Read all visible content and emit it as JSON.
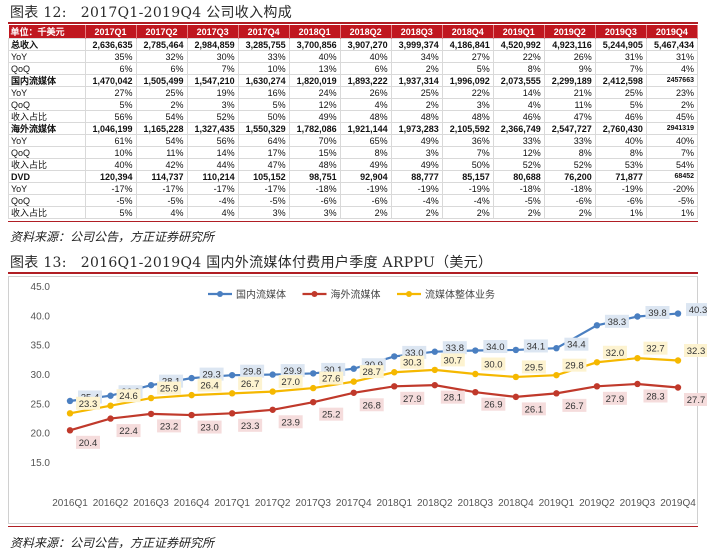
{
  "figure12": {
    "num": "图表 12:",
    "title": "2017Q1-2019Q4 公司收入构成",
    "source": "资料来源：公司公告，方正证券研究所"
  },
  "figure13": {
    "num": "图表 13:",
    "title": "2016Q1-2019Q4 国内外流媒体付费用户季度 ARPPU（美元）",
    "source": "资料来源：公司公告，方正证券研究所"
  },
  "table": {
    "headers": [
      "单位：千美元",
      "2017Q1",
      "2017Q2",
      "2017Q3",
      "2017Q4",
      "2018Q1",
      "2018Q2",
      "2018Q3",
      "2018Q4",
      "2019Q1",
      "2019Q2",
      "2019Q3",
      "2019Q4"
    ],
    "rows": [
      {
        "type": "main",
        "cells": [
          "总收入",
          "2,636,635",
          "2,785,464",
          "2,984,859",
          "3,285,755",
          "3,700,856",
          "3,907,270",
          "3,999,374",
          "4,186,841",
          "4,520,992",
          "4,923,116",
          "5,244,905",
          "5,467,434"
        ]
      },
      {
        "type": "sub",
        "cells": [
          "YoY",
          "35%",
          "32%",
          "30%",
          "33%",
          "40%",
          "40%",
          "34%",
          "27%",
          "22%",
          "26%",
          "31%",
          "31%"
        ]
      },
      {
        "type": "sub",
        "cells": [
          "QoQ",
          "6%",
          "6%",
          "7%",
          "10%",
          "13%",
          "6%",
          "2%",
          "5%",
          "8%",
          "9%",
          "7%",
          "4%"
        ]
      },
      {
        "type": "main",
        "sep": true,
        "cells": [
          "国内流媒体",
          "1,470,042",
          "1,505,499",
          "1,547,210",
          "1,630,274",
          "1,820,019",
          "1,893,222",
          "1,937,314",
          "1,996,092",
          "2,073,555",
          "2,299,189",
          "2,412,598",
          "2457663"
        ]
      },
      {
        "type": "sub",
        "cells": [
          "YoY",
          "27%",
          "25%",
          "19%",
          "16%",
          "24%",
          "26%",
          "25%",
          "22%",
          "14%",
          "21%",
          "25%",
          "23%"
        ]
      },
      {
        "type": "sub",
        "cells": [
          "QoQ",
          "5%",
          "2%",
          "3%",
          "5%",
          "12%",
          "4%",
          "2%",
          "3%",
          "4%",
          "11%",
          "5%",
          "2%"
        ]
      },
      {
        "type": "sub",
        "cells": [
          "收入占比",
          "56%",
          "54%",
          "52%",
          "50%",
          "49%",
          "48%",
          "48%",
          "48%",
          "46%",
          "47%",
          "46%",
          "45%"
        ]
      },
      {
        "type": "main",
        "sep": true,
        "cells": [
          "海外流媒体",
          "1,046,199",
          "1,165,228",
          "1,327,435",
          "1,550,329",
          "1,782,086",
          "1,921,144",
          "1,973,283",
          "2,105,592",
          "2,366,749",
          "2,547,727",
          "2,760,430",
          "2941319"
        ]
      },
      {
        "type": "sub",
        "cells": [
          "YoY",
          "61%",
          "54%",
          "56%",
          "64%",
          "70%",
          "65%",
          "49%",
          "36%",
          "33%",
          "33%",
          "40%",
          "40%"
        ]
      },
      {
        "type": "sub",
        "cells": [
          "QoQ",
          "10%",
          "11%",
          "14%",
          "17%",
          "15%",
          "8%",
          "3%",
          "7%",
          "12%",
          "8%",
          "8%",
          "7%"
        ]
      },
      {
        "type": "sub",
        "cells": [
          "收入占比",
          "40%",
          "42%",
          "44%",
          "47%",
          "48%",
          "49%",
          "49%",
          "50%",
          "52%",
          "52%",
          "53%",
          "54%"
        ]
      },
      {
        "type": "main",
        "sep": true,
        "cells": [
          "DVD",
          "120,394",
          "114,737",
          "110,214",
          "105,152",
          "98,751",
          "92,904",
          "88,777",
          "85,157",
          "80,688",
          "76,200",
          "71,877",
          "68452"
        ]
      },
      {
        "type": "sub",
        "cells": [
          "YoY",
          "-17%",
          "-17%",
          "-17%",
          "-17%",
          "-18%",
          "-19%",
          "-19%",
          "-19%",
          "-18%",
          "-18%",
          "-19%",
          "-20%"
        ]
      },
      {
        "type": "sub",
        "cells": [
          "QoQ",
          "-5%",
          "-5%",
          "-4%",
          "-5%",
          "-6%",
          "-6%",
          "-4%",
          "-4%",
          "-5%",
          "-6%",
          "-6%",
          "-5%"
        ]
      },
      {
        "type": "sub",
        "cells": [
          "收入占比",
          "5%",
          "4%",
          "4%",
          "3%",
          "3%",
          "2%",
          "2%",
          "2%",
          "2%",
          "2%",
          "1%",
          "1%"
        ]
      }
    ]
  },
  "chart_data": {
    "type": "line",
    "title": "",
    "xlabel": "",
    "ylabel": "",
    "ylim": [
      15.0,
      45.0
    ],
    "yticks": [
      "15.0",
      "20.0",
      "25.0",
      "30.0",
      "35.0",
      "40.0",
      "45.0"
    ],
    "grid": false,
    "legend_position": "top-center",
    "categories": [
      "2016Q1",
      "2016Q2",
      "2016Q3",
      "2016Q4",
      "2017Q1",
      "2017Q2",
      "2017Q3",
      "2017Q4",
      "2018Q1",
      "2018Q2",
      "2018Q3",
      "2018Q4",
      "2019Q1",
      "2019Q2",
      "2019Q3",
      "2019Q4"
    ],
    "series": [
      {
        "name": "国内流媒体",
        "color": "#4a7fc1",
        "label_bg": "#dce6f2",
        "label_pos": "right",
        "values": [
          25.4,
          26.3,
          28.1,
          29.3,
          29.8,
          29.9,
          30.1,
          30.9,
          33.0,
          33.8,
          34.0,
          34.1,
          34.4,
          38.3,
          39.8,
          40.3
        ]
      },
      {
        "name": "海外流媒体",
        "color": "#c0392b",
        "label_bg": "#f5dcdc",
        "label_pos": "below",
        "values": [
          20.4,
          22.4,
          23.2,
          23.0,
          23.3,
          23.9,
          25.2,
          26.8,
          27.9,
          28.1,
          26.9,
          26.1,
          26.7,
          27.9,
          28.3,
          27.7
        ]
      },
      {
        "name": "流媒体整体业务",
        "color": "#f5b800",
        "label_bg": "#fdf3d0",
        "label_pos": "above",
        "values": [
          23.3,
          24.6,
          25.9,
          26.4,
          26.7,
          27.0,
          27.6,
          28.7,
          30.3,
          30.7,
          30.0,
          29.5,
          29.8,
          32.0,
          32.7,
          32.3
        ]
      }
    ]
  }
}
